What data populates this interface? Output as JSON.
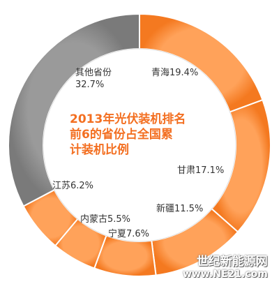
{
  "chart_data": {
    "type": "pie",
    "title": "2013年光伏装机排名前6的省份占全国累计装机比例",
    "slices": [
      {
        "label": "青海",
        "value": 19.4,
        "text": "19.4%"
      },
      {
        "label": "甘肃",
        "value": 17.1,
        "text": "17.1%"
      },
      {
        "label": "新疆",
        "value": 11.5,
        "text": "11.5%"
      },
      {
        "label": "宁夏",
        "value": 7.6,
        "text": "7.6%"
      },
      {
        "label": "内蒙古",
        "value": 5.5,
        "text": "5.5%"
      },
      {
        "label": "江苏",
        "value": 6.2,
        "text": "6.2%"
      },
      {
        "label": "其他省份",
        "value": 32.7,
        "text": "32.7%"
      }
    ],
    "colors": {
      "provinces": "#f47920",
      "others": "#7a7a7a"
    }
  },
  "labels": {
    "title_lines": [
      "2013年光伏装机排名",
      "前6的省份占全国累",
      "计装机比例"
    ],
    "qinghai": "青海19.4%",
    "gansu": "甘肃17.1%",
    "xinjiang": "新疆11.5%",
    "ningxia": "宁夏7.6%",
    "neimenggu": "内蒙古5.5%",
    "jiangsu": "江苏6.2%",
    "others_name": "其他省份",
    "others_value": "32.7%"
  },
  "watermark": {
    "name": "世纪新能源网",
    "url": "www.NE21.com"
  }
}
